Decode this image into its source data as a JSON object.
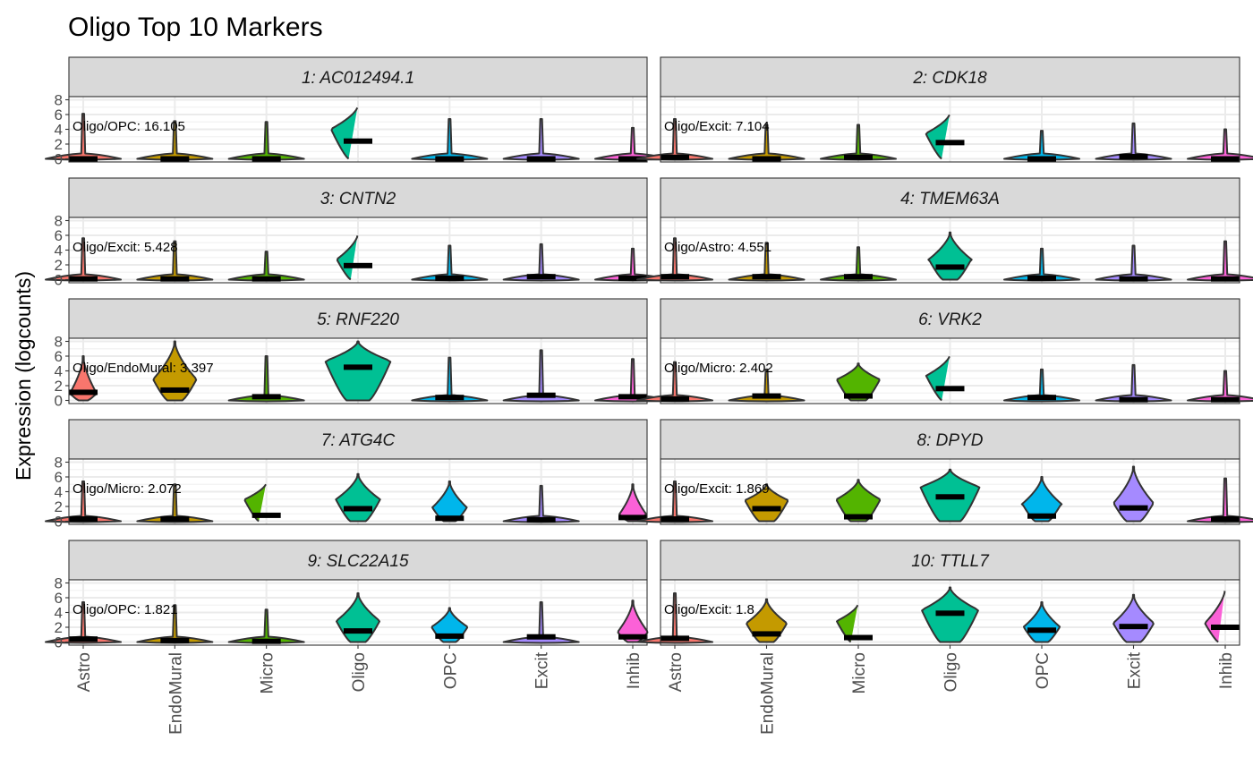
{
  "chart_data": {
    "type": "violin",
    "title": "Oligo Top 10 Markers",
    "ylabel": "Expression (logcounts)",
    "xlabel": "",
    "ylim": [
      0,
      8
    ],
    "y_ticks": [
      0,
      2,
      4,
      6,
      8
    ],
    "grid": true,
    "legend": "none",
    "categories": [
      "Astro",
      "EndoMural",
      "Micro",
      "Oligo",
      "OPC",
      "Excit",
      "Inhib"
    ],
    "colors": {
      "Astro": "#F8766D",
      "EndoMural": "#C49A00",
      "Micro": "#53B400",
      "Oligo": "#00C094",
      "OPC": "#00B6EB",
      "Excit": "#A58AFF",
      "Inhib": "#FB61D7"
    },
    "panels": [
      {
        "strip": "1: AC012494.1",
        "annotation": "Oligo/OPC: 16.105",
        "medians": [
          0,
          0,
          0,
          2.4,
          0,
          0,
          0
        ],
        "max": [
          6.1,
          5.1,
          5.0,
          7.2,
          5.4,
          5.4,
          4.2
        ],
        "mode": [
          0,
          0,
          0,
          4.0,
          0,
          0,
          0
        ]
      },
      {
        "strip": "2: CDK18",
        "annotation": "Oligo/Excit: 7.104",
        "medians": [
          0.2,
          0,
          0.2,
          2.2,
          0,
          0.3,
          0
        ],
        "max": [
          5.4,
          4.6,
          4.6,
          6.2,
          3.8,
          4.8,
          4.0
        ],
        "mode": [
          0,
          0,
          0,
          3.4,
          0,
          0,
          0
        ]
      },
      {
        "strip": "3: CNTN2",
        "annotation": "Oligo/Excit: 5.428",
        "medians": [
          0.1,
          0.1,
          0.1,
          1.9,
          0.2,
          0.4,
          0.2
        ],
        "max": [
          5.6,
          5.2,
          3.8,
          6.2,
          4.6,
          4.8,
          4.2
        ],
        "mode": [
          0,
          0,
          0,
          2.7,
          0,
          0,
          0
        ]
      },
      {
        "strip": "4: TMEM63A",
        "annotation": "Oligo/Astro: 4.551",
        "medians": [
          0.4,
          0.4,
          0.4,
          1.7,
          0.2,
          0.1,
          0.1
        ],
        "max": [
          5.6,
          5.0,
          4.4,
          6.4,
          4.2,
          4.6,
          5.2
        ],
        "mode": [
          0,
          0,
          0,
          2.7,
          0,
          0,
          0
        ]
      },
      {
        "strip": "5: RNF220",
        "annotation": "Oligo/EndoMural: 3.397",
        "medians": [
          1.1,
          1.4,
          0.5,
          4.5,
          0.4,
          0.7,
          0.5
        ],
        "max": [
          6.0,
          8.0,
          6.0,
          8.0,
          5.8,
          6.8,
          5.6
        ],
        "mode": [
          0.9,
          2.8,
          0,
          5.3,
          0,
          0,
          0
        ]
      },
      {
        "strip": "6: VRK2",
        "annotation": "Oligo/Micro: 2.402",
        "medians": [
          0.2,
          0.6,
          0.6,
          1.6,
          0.4,
          0.1,
          0.1
        ],
        "max": [
          5.2,
          4.2,
          5.0,
          6.2,
          4.2,
          4.8,
          4.0
        ],
        "mode": [
          0,
          0,
          2.8,
          3.3,
          0,
          0,
          0
        ]
      },
      {
        "strip": "7: ATG4C",
        "annotation": "Oligo/Micro: 2.072",
        "medians": [
          0.3,
          0.3,
          0.8,
          1.7,
          0.4,
          0.2,
          0.5
        ],
        "max": [
          5.4,
          5.0,
          5.2,
          6.4,
          5.4,
          4.8,
          5.0
        ],
        "mode": [
          0,
          0,
          2.9,
          2.9,
          1.8,
          0,
          0.9
        ]
      },
      {
        "strip": "8: DPYD",
        "annotation": "Oligo/Excit: 1.869",
        "medians": [
          0.3,
          1.7,
          0.6,
          3.3,
          0.7,
          1.8,
          0.3
        ],
        "max": [
          5.4,
          5.0,
          5.6,
          7.0,
          6.0,
          7.4,
          5.8
        ],
        "mode": [
          0,
          2.8,
          2.9,
          4.6,
          2.3,
          2.4,
          0
        ]
      },
      {
        "strip": "9: SLC22A15",
        "annotation": "Oligo/OPC: 1.821",
        "medians": [
          0.4,
          0.2,
          0.1,
          1.5,
          0.8,
          0.7,
          0.7
        ],
        "max": [
          5.4,
          5.0,
          4.4,
          6.6,
          4.6,
          5.4,
          5.6
        ],
        "mode": [
          0,
          0,
          0,
          2.8,
          2.0,
          0,
          1.3
        ]
      },
      {
        "strip": "10: TTLL7",
        "annotation": "Oligo/Excit: 1.8",
        "medians": [
          0.5,
          1.1,
          0.6,
          3.9,
          1.6,
          2.1,
          2.0
        ],
        "max": [
          6.6,
          5.8,
          5.2,
          7.4,
          5.4,
          6.4,
          7.2
        ],
        "mode": [
          0,
          2.5,
          2.8,
          4.3,
          2.0,
          2.5,
          2.5
        ]
      }
    ]
  }
}
